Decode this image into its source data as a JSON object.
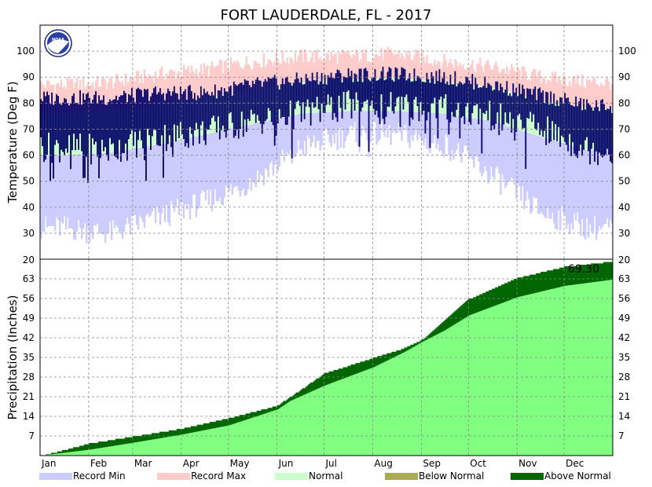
{
  "chart_data": {
    "type": "area",
    "title": "FORT LAUDERDALE, FL - 2017",
    "months": [
      "Jan",
      "Feb",
      "Mar",
      "Apr",
      "May",
      "Jun",
      "Jul",
      "Aug",
      "Sep",
      "Oct",
      "Nov",
      "Dec"
    ],
    "logo_text": "NOAA",
    "legend": [
      {
        "label": "Record Min",
        "color": "#ccccff"
      },
      {
        "label": "Record Max",
        "color": "#ffcccc"
      },
      {
        "label": "Normal",
        "color": "#ccffcc"
      },
      {
        "label": "Below Normal",
        "color": "#aaaa55"
      },
      {
        "label": "Above Normal",
        "color": "#006600"
      }
    ],
    "temperature": {
      "ylabel": "Temperature (Deg F)",
      "ylim": [
        20,
        110
      ],
      "ticks": [
        30,
        40,
        50,
        60,
        70,
        80,
        90,
        100
      ],
      "colors": {
        "record_min": "#ccccff",
        "record_max": "#ffcccc",
        "normal": "#ccffcc",
        "actual": "#000066"
      },
      "normal_high_monthly": [
        76,
        77,
        79,
        82,
        85,
        88,
        89,
        90,
        88,
        86,
        81,
        78
      ],
      "normal_low_monthly": [
        60,
        61,
        64,
        68,
        72,
        76,
        77,
        77,
        76,
        73,
        67,
        62
      ],
      "record_high_monthly": [
        87,
        88,
        91,
        93,
        96,
        98,
        98,
        99,
        96,
        94,
        90,
        88
      ],
      "record_low_monthly": [
        32,
        30,
        36,
        42,
        50,
        63,
        68,
        68,
        64,
        52,
        38,
        32
      ],
      "actual_high_monthly": [
        82,
        82,
        84,
        84,
        87,
        89,
        91,
        91,
        90,
        87,
        83,
        79
      ],
      "actual_low_monthly": [
        63,
        62,
        67,
        69,
        73,
        76,
        79,
        79,
        78,
        75,
        70,
        62
      ]
    },
    "precipitation": {
      "ylabel": "Precipitation (Inches)",
      "ylim": [
        0,
        70
      ],
      "ticks": [
        7,
        14,
        21,
        28,
        35,
        42,
        49,
        56,
        63
      ],
      "top_label": "20",
      "total_label": "69.30",
      "colors": {
        "normal": "#80ff80",
        "below": "#aaaa55",
        "above": "#006600"
      },
      "day_of_year": [
        1,
        32,
        60,
        91,
        121,
        152,
        160,
        182,
        213,
        233,
        244,
        258,
        274,
        305,
        335,
        365
      ],
      "normal_cumulative": [
        0,
        2.1,
        4.6,
        7.5,
        10.8,
        16.5,
        19.5,
        25.0,
        31.5,
        37.0,
        40.5,
        44.5,
        50.0,
        56.5,
        60.5,
        62.7
      ],
      "actual_cumulative": [
        0,
        4.5,
        7.0,
        9.8,
        13.5,
        18.0,
        21.0,
        29.5,
        35.0,
        38.5,
        41.5,
        48.0,
        56.0,
        63.5,
        67.5,
        69.3
      ]
    }
  }
}
